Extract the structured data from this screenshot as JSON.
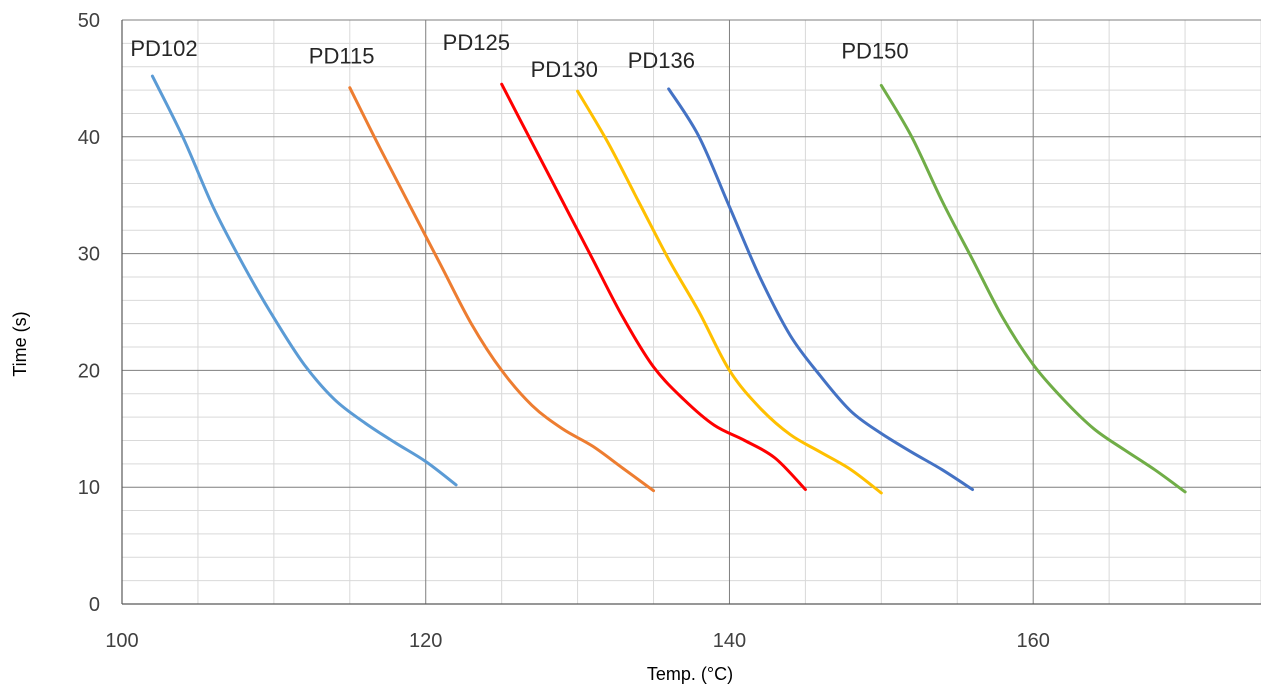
{
  "chart_data": {
    "type": "line",
    "title": "",
    "xlabel": "Temp. (°C)",
    "ylabel": "Time (s)",
    "xlim": [
      100,
      175
    ],
    "ylim": [
      0,
      50
    ],
    "x_ticks": [
      100,
      120,
      140,
      160
    ],
    "y_ticks": [
      0,
      10,
      20,
      30,
      40,
      50
    ],
    "x_minor_step": 5,
    "y_minor_step": 2,
    "grid": true,
    "legend": "none",
    "series": [
      {
        "name": "PD102",
        "color": "#5B9BD5",
        "points": [
          [
            102,
            45.2
          ],
          [
            104,
            40
          ],
          [
            106,
            34
          ],
          [
            108,
            29
          ],
          [
            110,
            24.5
          ],
          [
            112,
            20.5
          ],
          [
            114,
            17.5
          ],
          [
            116,
            15.5
          ],
          [
            118,
            13.8
          ],
          [
            120,
            12.2
          ],
          [
            122,
            10.2
          ]
        ]
      },
      {
        "name": "PD115",
        "color": "#ED7D31",
        "points": [
          [
            115,
            44.2
          ],
          [
            117,
            39
          ],
          [
            119,
            34
          ],
          [
            121,
            29
          ],
          [
            123,
            24
          ],
          [
            125,
            20
          ],
          [
            127,
            17
          ],
          [
            129,
            15
          ],
          [
            131,
            13.5
          ],
          [
            133,
            11.6
          ],
          [
            135,
            9.7
          ]
        ]
      },
      {
        "name": "PD125",
        "color": "#FF0000",
        "points": [
          [
            125,
            44.5
          ],
          [
            127,
            39.5
          ],
          [
            129,
            34.5
          ],
          [
            131,
            29.5
          ],
          [
            133,
            24.5
          ],
          [
            135,
            20.3
          ],
          [
            137,
            17.5
          ],
          [
            139,
            15.3
          ],
          [
            141,
            14
          ],
          [
            143,
            12.5
          ],
          [
            145,
            9.8
          ]
        ]
      },
      {
        "name": "PD130",
        "color": "#FFC000",
        "points": [
          [
            130,
            43.9
          ],
          [
            132,
            39.5
          ],
          [
            134,
            34.5
          ],
          [
            136,
            29.5
          ],
          [
            138,
            25
          ],
          [
            140,
            20
          ],
          [
            142,
            16.8
          ],
          [
            144,
            14.5
          ],
          [
            146,
            13
          ],
          [
            148,
            11.5
          ],
          [
            150,
            9.5
          ]
        ]
      },
      {
        "name": "PD136",
        "color": "#4472C4",
        "points": [
          [
            136,
            44.1
          ],
          [
            138,
            40
          ],
          [
            140,
            34
          ],
          [
            142,
            28
          ],
          [
            144,
            23
          ],
          [
            146,
            19.5
          ],
          [
            148,
            16.5
          ],
          [
            150,
            14.6
          ],
          [
            152,
            13
          ],
          [
            154,
            11.5
          ],
          [
            156,
            9.8
          ]
        ]
      },
      {
        "name": "PD150",
        "color": "#70AD47",
        "points": [
          [
            150,
            44.4
          ],
          [
            152,
            40
          ],
          [
            154,
            34.5
          ],
          [
            156,
            29.5
          ],
          [
            158,
            24.5
          ],
          [
            160,
            20.5
          ],
          [
            162,
            17.5
          ],
          [
            164,
            15
          ],
          [
            166,
            13.2
          ],
          [
            168,
            11.5
          ],
          [
            170,
            9.6
          ]
        ]
      }
    ]
  }
}
